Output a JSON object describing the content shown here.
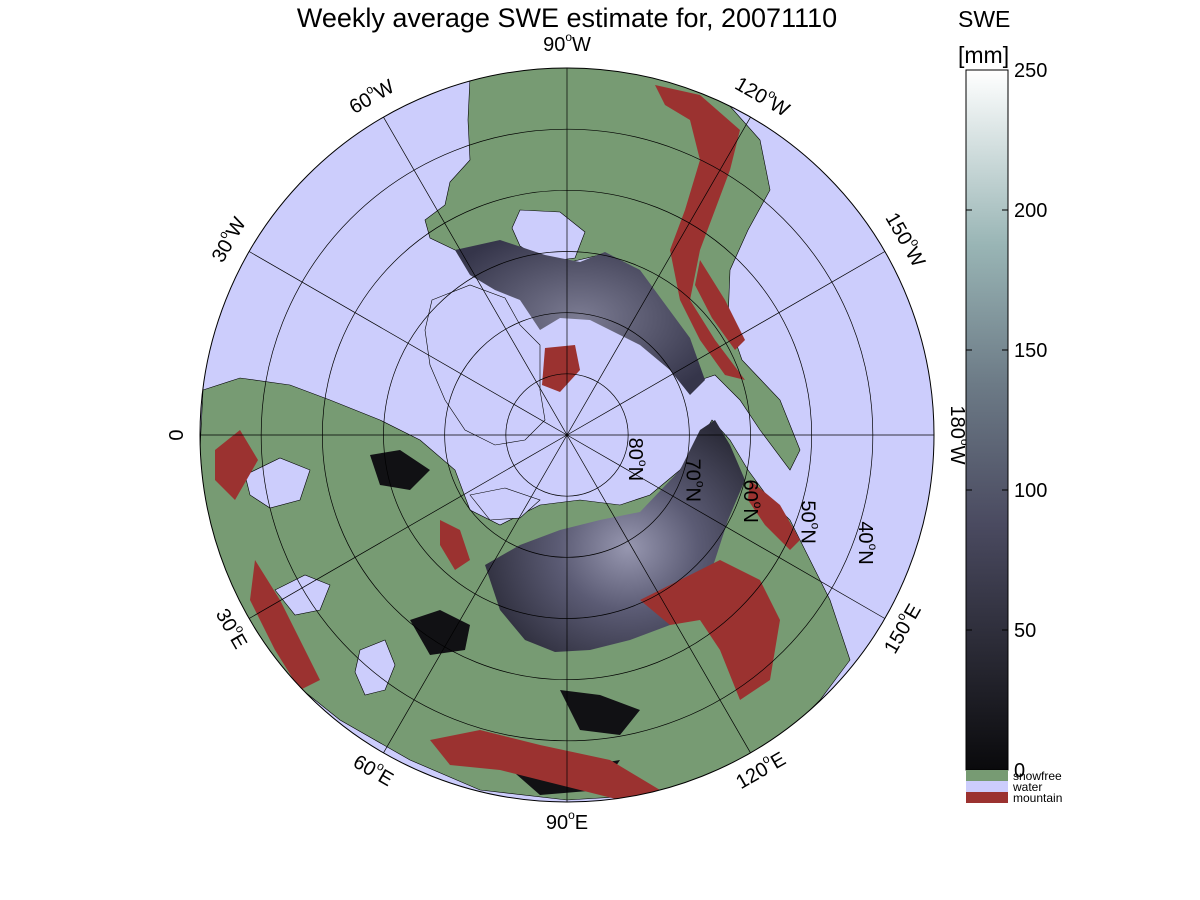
{
  "title": "Weekly average SWE estimate for, 20071110",
  "colors": {
    "water": "#cccdfc",
    "snowfree": "#779b73",
    "mountain": "#9b3230",
    "snow_dark": "#3c3c4e",
    "snow_mid": "#5a5a72",
    "snow_light": "#8a8aa2",
    "snow_black": "#111114",
    "coast": "#000000"
  },
  "longitude_labels": [
    {
      "label": "90",
      "unit": "W",
      "lon": -90
    },
    {
      "label": "120",
      "unit": "W",
      "lon": -120
    },
    {
      "label": "150",
      "unit": "W",
      "lon": -150
    },
    {
      "label": "180",
      "unit": "W",
      "lon": 180
    },
    {
      "label": "150",
      "unit": "E",
      "lon": 150
    },
    {
      "label": "120",
      "unit": "E",
      "lon": 120
    },
    {
      "label": "90",
      "unit": "E",
      "lon": 90
    },
    {
      "label": "60",
      "unit": "E",
      "lon": 60
    },
    {
      "label": "30",
      "unit": "E",
      "lon": 30
    },
    {
      "label": "0",
      "unit": "",
      "lon": 0
    },
    {
      "label": "30",
      "unit": "W",
      "lon": -30
    },
    {
      "label": "60",
      "unit": "W",
      "lon": -60
    }
  ],
  "latitude_labels": [
    {
      "label": "80",
      "unit": "N",
      "lat": 80
    },
    {
      "label": "70",
      "unit": "N",
      "lat": 70
    },
    {
      "label": "60",
      "unit": "N",
      "lat": 60
    },
    {
      "label": "50",
      "unit": "N",
      "lat": 50
    },
    {
      "label": "40",
      "unit": "N",
      "lat": 40
    }
  ],
  "colorbar": {
    "title": "SWE",
    "unit": "[mm]",
    "min": 0,
    "max": 250,
    "ticks": [
      0,
      50,
      100,
      150,
      200,
      250
    ],
    "tick_labels": [
      "0",
      "50",
      "100",
      "150",
      "200",
      "250"
    ],
    "legend": [
      {
        "label": "snowfree",
        "color": "#779b73"
      },
      {
        "label": "water",
        "color": "#cccdfc"
      },
      {
        "label": "mountain",
        "color": "#9b3230"
      }
    ]
  }
}
